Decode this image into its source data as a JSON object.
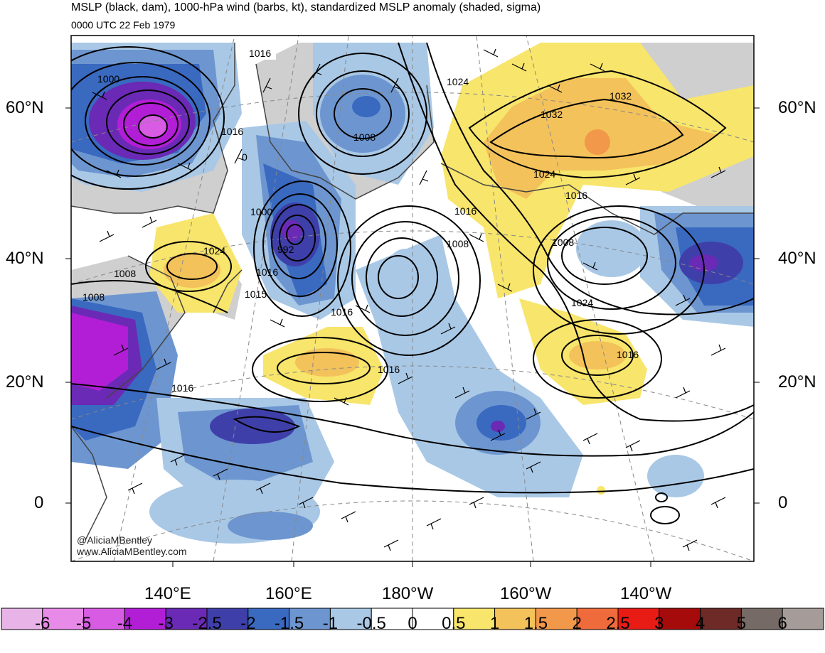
{
  "header": {
    "title": "MSLP (black, dam), 1000-hPa wind (barbs, kt), standardized MSLP anomaly (shaded, sigma)",
    "subtitle": "0000 UTC 22 Feb 1979"
  },
  "axes": {
    "lat_labels": [
      "60°N",
      "40°N",
      "20°N",
      "0"
    ],
    "lon_labels": [
      "140°E",
      "160°E",
      "180°W",
      "160°W",
      "140°W"
    ]
  },
  "isobar_labels": [
    "1016",
    "1000",
    "1024",
    "1016",
    "0",
    "1008",
    "1032",
    "1032",
    "1024",
    "1016",
    "1016",
    "1000",
    "992",
    "1008",
    "1024",
    "1016",
    "1015",
    "1008",
    "1008",
    "1008",
    "1016",
    "1024",
    "1016",
    "1016",
    "1016"
  ],
  "watermark": {
    "line1": "@AliciaMBentley",
    "line2": "www.AliciaMBentley.com"
  },
  "colorbar": {
    "colors": [
      "#e8b4e8",
      "#e88ae8",
      "#d75ce3",
      "#b21ed6",
      "#6a2ab5",
      "#3f3faa",
      "#3a69c0",
      "#6d96d0",
      "#a9c8e6",
      "#ffffff",
      "#ffffff",
      "#f8e56b",
      "#f3c25a",
      "#f2984a",
      "#ef6b3b",
      "#e81b15",
      "#a50b0b",
      "#6d2a26",
      "#756a66",
      "#a59b98"
    ],
    "labels": [
      "-6",
      "-5",
      "-4",
      "-3",
      "-2.5",
      "-2",
      "-1.5",
      "-1",
      "-0.5",
      "0",
      "0.5",
      "1",
      "1.5",
      "2",
      "2.5",
      "3",
      "4",
      "5",
      "6"
    ]
  }
}
